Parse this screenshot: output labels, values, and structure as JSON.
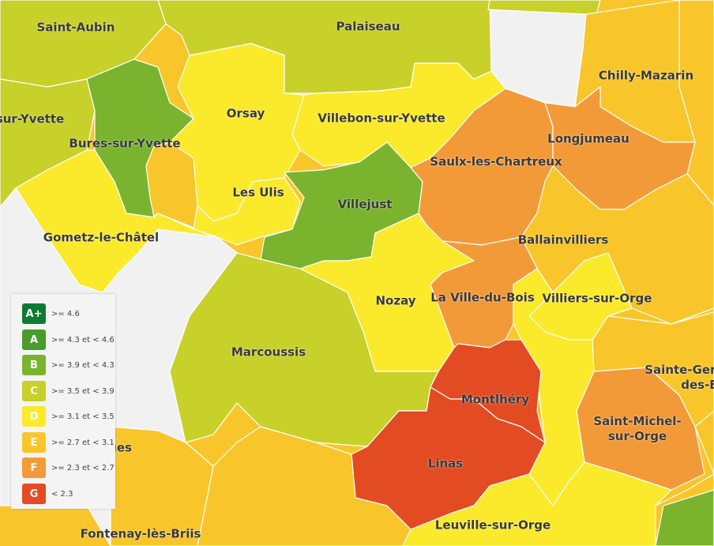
{
  "colors": {
    "A_plus": "#0f7a32",
    "A": "#4a9b2e",
    "B": "#7ab42e",
    "C": "#c8d02a",
    "D": "#fbe92b",
    "E": "#f8c62a",
    "F": "#f39a38",
    "G": "#e34b23",
    "none": "#f1f1f1"
  },
  "communes": [
    {
      "name": "Saint-Aubin",
      "grade": "C"
    },
    {
      "name": "Palaiseau",
      "grade": "C"
    },
    {
      "name": "Chilly-Mazarin",
      "grade": "E"
    },
    {
      "name": "sur-Yvette",
      "grade": "C"
    },
    {
      "name": "Orsay",
      "grade": "D"
    },
    {
      "name": "Villebon-sur-Yvette",
      "grade": "D"
    },
    {
      "name": "Bures-sur-Yvette",
      "grade": "B"
    },
    {
      "name": "Longjumeau",
      "grade": "F"
    },
    {
      "name": "Saulx-les-Chartreux",
      "grade": "F"
    },
    {
      "name": "Les Ulis",
      "grade": "D"
    },
    {
      "name": "Villejust",
      "grade": "B"
    },
    {
      "name": "Gometz-le-Châtel",
      "grade": "D"
    },
    {
      "name": "Ballainvilliers",
      "grade": "E"
    },
    {
      "name": "Nozay",
      "grade": "D"
    },
    {
      "name": "La Ville-du-Bois",
      "grade": "F"
    },
    {
      "name": "Villiers-sur-Orge",
      "grade": "D"
    },
    {
      "name": "Marcoussis",
      "grade": "C"
    },
    {
      "name": "Sainte-Gen\ndes-B",
      "grade": "E"
    },
    {
      "name": "Montlhéry",
      "grade": "G"
    },
    {
      "name": "Saint-Michel-\nsur-Orge",
      "grade": "F"
    },
    {
      "name": "ges",
      "grade": "E"
    },
    {
      "name": "Linas",
      "grade": "G"
    },
    {
      "name": "Leuville-sur-Orge",
      "grade": "D"
    },
    {
      "name": "Fontenay-lès-Briis",
      "grade": "E"
    }
  ],
  "legend": [
    {
      "grade": "A+",
      "range": ">= 4.6",
      "color": "#0f7a32"
    },
    {
      "grade": "A",
      "range": ">= 4.3 et < 4.6",
      "color": "#4a9b2e"
    },
    {
      "grade": "B",
      "range": ">= 3.9 et < 4.3",
      "color": "#7ab42e"
    },
    {
      "grade": "C",
      "range": ">= 3.5 et < 3.9",
      "color": "#c8d02a"
    },
    {
      "grade": "D",
      "range": ">= 3.1 et < 3.5",
      "color": "#fbe92b"
    },
    {
      "grade": "E",
      "range": ">= 2.7 et < 3.1",
      "color": "#f8c62a"
    },
    {
      "grade": "F",
      "range": ">= 2.3 et < 2.7",
      "color": "#f39a38"
    },
    {
      "grade": "G",
      "range": "< 2.3",
      "color": "#e34b23"
    }
  ]
}
